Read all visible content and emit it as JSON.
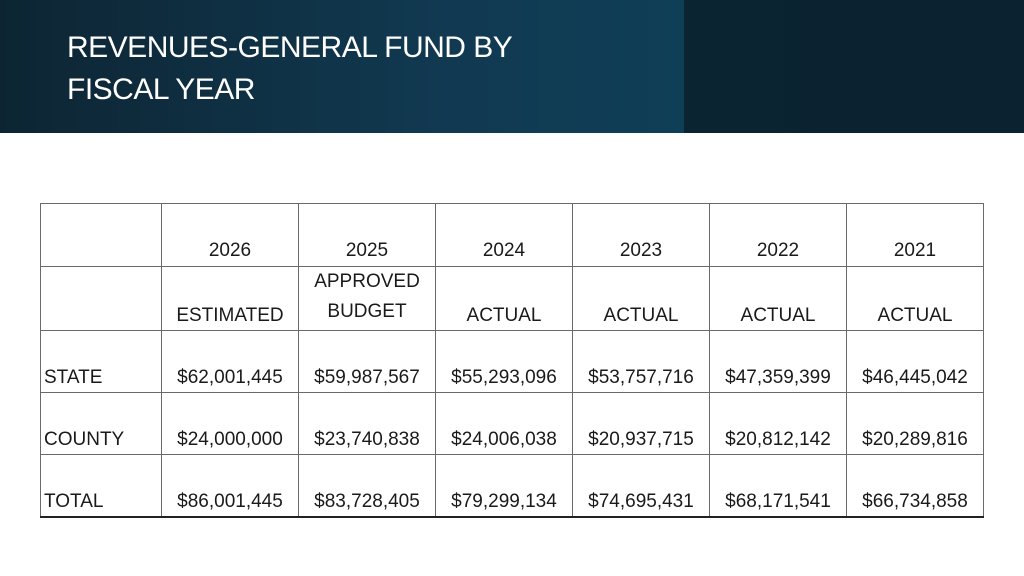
{
  "slide": {
    "title_line1": "REVENUES-GENERAL FUND BY",
    "title_line2": "FISCAL YEAR"
  },
  "table": {
    "years": [
      "2026",
      "2025",
      "2024",
      "2023",
      "2022",
      "2021"
    ],
    "types": [
      "ESTIMATED",
      "APPROVED BUDGET",
      "ACTUAL",
      "ACTUAL",
      "ACTUAL",
      "ACTUAL"
    ],
    "type_approved_line1": "APPROVED",
    "type_approved_line2": "BUDGET",
    "rows": [
      {
        "label": "STATE",
        "values": [
          "$62,001,445",
          "$59,987,567",
          "$55,293,096",
          "$53,757,716",
          "$47,359,399",
          "$46,445,042"
        ]
      },
      {
        "label": "COUNTY",
        "values": [
          "$24,000,000",
          "$23,740,838",
          "$24,006,038",
          "$20,937,715",
          "$20,812,142",
          "$20,289,816"
        ]
      },
      {
        "label": "TOTAL",
        "values": [
          "$86,001,445",
          "$83,728,405",
          "$79,299,134",
          "$74,695,431",
          "$68,171,541",
          "$66,734,858"
        ]
      }
    ]
  }
}
